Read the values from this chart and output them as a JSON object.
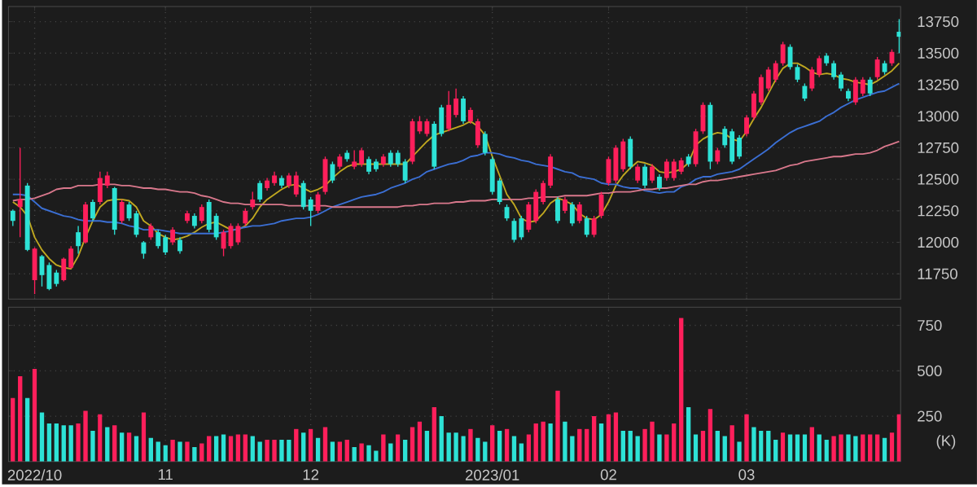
{
  "chart_data": [
    {
      "type": "candlestick",
      "categories": [
        null,
        null,
        null,
        "2022/10",
        null,
        null,
        null,
        null,
        null,
        null,
        null,
        null,
        null,
        null,
        null,
        null,
        null,
        null,
        null,
        null,
        null,
        "11",
        null,
        null,
        null,
        null,
        null,
        null,
        null,
        null,
        null,
        null,
        null,
        null,
        null,
        null,
        null,
        null,
        null,
        null,
        null,
        "12",
        null,
        null,
        null,
        null,
        null,
        null,
        null,
        null,
        null,
        null,
        null,
        null,
        null,
        null,
        null,
        null,
        null,
        null,
        null,
        null,
        null,
        null,
        null,
        null,
        "2023/01",
        null,
        null,
        null,
        null,
        null,
        null,
        null,
        null,
        null,
        null,
        null,
        null,
        null,
        null,
        null,
        "02",
        null,
        null,
        null,
        null,
        null,
        null,
        null,
        null,
        null,
        null,
        null,
        null,
        null,
        null,
        null,
        null,
        null,
        null,
        "03",
        null,
        null,
        null,
        null,
        null,
        null,
        null,
        null,
        null,
        null,
        null,
        null,
        null,
        null,
        null,
        null,
        null,
        null,
        null,
        null,
        null
      ],
      "ohlc": [
        [
          12250,
          12260,
          12130,
          12170
        ],
        [
          12280,
          12750,
          12040,
          12340
        ],
        [
          12450,
          12470,
          11930,
          11940
        ],
        [
          11700,
          11960,
          11590,
          11950
        ],
        [
          11890,
          11900,
          11650,
          11740
        ],
        [
          11820,
          11840,
          11620,
          11630
        ],
        [
          11760,
          11780,
          11650,
          11670
        ],
        [
          11700,
          11880,
          11690,
          11870
        ],
        [
          11800,
          11970,
          11790,
          11950
        ],
        [
          12080,
          12130,
          11910,
          11970
        ],
        [
          12000,
          12320,
          11990,
          12300
        ],
        [
          12320,
          12340,
          12170,
          12190
        ],
        [
          12320,
          12560,
          12300,
          12510
        ],
        [
          12450,
          12560,
          12430,
          12530
        ],
        [
          12430,
          12440,
          12060,
          12100
        ],
        [
          12170,
          12340,
          12150,
          12320
        ],
        [
          12300,
          12320,
          12170,
          12190
        ],
        [
          12230,
          12250,
          12040,
          12060
        ],
        [
          12000,
          12010,
          11870,
          11910
        ],
        [
          12040,
          12150,
          12020,
          12130
        ],
        [
          12080,
          12100,
          11950,
          11970
        ],
        [
          12040,
          12060,
          11900,
          11920
        ],
        [
          12000,
          12120,
          11980,
          12100
        ],
        [
          12020,
          12040,
          11910,
          11930
        ],
        [
          12170,
          12250,
          12150,
          12230
        ],
        [
          12210,
          12230,
          12110,
          12130
        ],
        [
          12170,
          12300,
          12150,
          12280
        ],
        [
          12320,
          12340,
          12080,
          12100
        ],
        [
          12210,
          12230,
          12020,
          12040
        ],
        [
          11950,
          12100,
          11890,
          12080
        ],
        [
          11970,
          12150,
          11950,
          12130
        ],
        [
          12000,
          12150,
          11980,
          12130
        ],
        [
          12150,
          12270,
          12130,
          12250
        ],
        [
          12280,
          12400,
          12260,
          12340
        ],
        [
          12470,
          12490,
          12320,
          12340
        ],
        [
          12430,
          12510,
          12410,
          12490
        ],
        [
          12470,
          12560,
          12450,
          12530
        ],
        [
          12510,
          12530,
          12430,
          12450
        ],
        [
          12450,
          12550,
          12430,
          12530
        ],
        [
          12380,
          12560,
          12360,
          12530
        ],
        [
          12470,
          12490,
          12260,
          12280
        ],
        [
          12340,
          12360,
          12130,
          12250
        ],
        [
          12250,
          12400,
          12230,
          12380
        ],
        [
          12400,
          12680,
          12380,
          12660
        ],
        [
          12620,
          12640,
          12470,
          12490
        ],
        [
          12600,
          12700,
          12580,
          12680
        ],
        [
          12710,
          12730,
          12640,
          12660
        ],
        [
          12600,
          12730,
          12580,
          12640
        ],
        [
          12620,
          12750,
          12600,
          12730
        ],
        [
          12660,
          12680,
          12540,
          12560
        ],
        [
          12640,
          12660,
          12560,
          12580
        ],
        [
          12620,
          12700,
          12600,
          12680
        ],
        [
          12710,
          12730,
          12600,
          12620
        ],
        [
          12710,
          12730,
          12600,
          12620
        ],
        [
          12640,
          12660,
          12470,
          12490
        ],
        [
          12640,
          12980,
          12620,
          12960
        ],
        [
          12880,
          13000,
          12860,
          12960
        ],
        [
          12860,
          12980,
          12840,
          12960
        ],
        [
          12940,
          12960,
          12580,
          12600
        ],
        [
          13070,
          13090,
          12840,
          12860
        ],
        [
          12900,
          13200,
          12880,
          13090
        ],
        [
          13010,
          13220,
          12990,
          13140
        ],
        [
          13140,
          13160,
          12940,
          12960
        ],
        [
          12960,
          13070,
          12940,
          13050
        ],
        [
          12770,
          12980,
          12750,
          12960
        ],
        [
          12860,
          12880,
          12690,
          12710
        ],
        [
          12660,
          12680,
          12380,
          12400
        ],
        [
          12490,
          12510,
          12300,
          12320
        ],
        [
          12280,
          12300,
          12170,
          12190
        ],
        [
          12170,
          12190,
          12000,
          12020
        ],
        [
          12190,
          12210,
          12020,
          12040
        ],
        [
          12100,
          12320,
          12080,
          12300
        ],
        [
          12170,
          12420,
          12150,
          12400
        ],
        [
          12320,
          12490,
          12300,
          12470
        ],
        [
          12450,
          12700,
          12430,
          12680
        ],
        [
          12340,
          12360,
          12150,
          12170
        ],
        [
          12250,
          12360,
          12230,
          12340
        ],
        [
          12300,
          12320,
          12130,
          12150
        ],
        [
          12170,
          12320,
          12150,
          12300
        ],
        [
          12190,
          12210,
          12040,
          12060
        ],
        [
          12060,
          12210,
          12040,
          12190
        ],
        [
          12210,
          12400,
          12190,
          12380
        ],
        [
          12470,
          12680,
          12450,
          12660
        ],
        [
          12490,
          12770,
          12470,
          12750
        ],
        [
          12580,
          12820,
          12560,
          12800
        ],
        [
          12820,
          12840,
          12580,
          12600
        ],
        [
          12490,
          12620,
          12470,
          12600
        ],
        [
          12600,
          12620,
          12430,
          12450
        ],
        [
          12490,
          12620,
          12470,
          12600
        ],
        [
          12520,
          12540,
          12410,
          12430
        ],
        [
          12510,
          12660,
          12490,
          12640
        ],
        [
          12510,
          12660,
          12490,
          12640
        ],
        [
          12560,
          12670,
          12540,
          12650
        ],
        [
          12680,
          12700,
          12600,
          12620
        ],
        [
          12620,
          12900,
          12600,
          12880
        ],
        [
          12880,
          13110,
          12860,
          13090
        ],
        [
          13090,
          13110,
          12580,
          12640
        ],
        [
          12640,
          12750,
          12620,
          12730
        ],
        [
          12900,
          12920,
          12750,
          12770
        ],
        [
          12880,
          12900,
          12620,
          12640
        ],
        [
          12830,
          12850,
          12660,
          12680
        ],
        [
          12860,
          13010,
          12840,
          12990
        ],
        [
          12990,
          13200,
          12970,
          13180
        ],
        [
          13110,
          13330,
          13090,
          13310
        ],
        [
          13220,
          13390,
          13200,
          13370
        ],
        [
          13290,
          13440,
          13270,
          13420
        ],
        [
          13420,
          13590,
          13400,
          13570
        ],
        [
          13550,
          13570,
          13370,
          13390
        ],
        [
          13390,
          13410,
          13270,
          13290
        ],
        [
          13240,
          13260,
          13120,
          13140
        ],
        [
          13220,
          13390,
          13200,
          13370
        ],
        [
          13330,
          13480,
          13310,
          13460
        ],
        [
          13480,
          13500,
          13400,
          13420
        ],
        [
          13420,
          13440,
          13290,
          13310
        ],
        [
          13330,
          13350,
          13200,
          13220
        ],
        [
          13200,
          13220,
          13120,
          13140
        ],
        [
          13110,
          13310,
          13090,
          13290
        ],
        [
          13180,
          13310,
          13160,
          13290
        ],
        [
          13290,
          13310,
          13160,
          13180
        ],
        [
          13310,
          13470,
          13290,
          13450
        ],
        [
          13420,
          13440,
          13330,
          13350
        ],
        [
          13420,
          13530,
          13400,
          13510
        ],
        [
          13670,
          13770,
          13500,
          13630
        ]
      ],
      "colors": [
        "#2de2d6",
        "#ff1f5b",
        "#2de2d6",
        "#ff1f5b",
        "#2de2d6",
        "#2de2d6",
        "#2de2d6",
        "#ff1f5b",
        "#ff1f5b",
        "#2de2d6",
        "#ff1f5b",
        "#2de2d6",
        "#ff1f5b",
        "#ff1f5b",
        "#2de2d6",
        "#ff1f5b",
        "#2de2d6",
        "#2de2d6",
        "#2de2d6",
        "#ff1f5b",
        "#2de2d6",
        "#2de2d6",
        "#ff1f5b",
        "#2de2d6",
        "#ff1f5b",
        "#2de2d6",
        "#ff1f5b",
        "#2de2d6",
        "#2de2d6",
        "#ff1f5b",
        "#ff1f5b",
        "#ff1f5b",
        "#ff1f5b",
        "#ff1f5b",
        "#2de2d6",
        "#ff1f5b",
        "#ff1f5b",
        "#2de2d6",
        "#ff1f5b",
        "#ff1f5b",
        "#2de2d6",
        "#2de2d6",
        "#ff1f5b",
        "#ff1f5b",
        "#2de2d6",
        "#ff1f5b",
        "#2de2d6",
        "#ff1f5b",
        "#ff1f5b",
        "#2de2d6",
        "#2de2d6",
        "#ff1f5b",
        "#2de2d6",
        "#2de2d6",
        "#2de2d6",
        "#ff1f5b",
        "#ff1f5b",
        "#ff1f5b",
        "#2de2d6",
        "#2de2d6",
        "#ff1f5b",
        "#ff1f5b",
        "#2de2d6",
        "#ff1f5b",
        "#ff1f5b",
        "#2de2d6",
        "#2de2d6",
        "#2de2d6",
        "#2de2d6",
        "#2de2d6",
        "#2de2d6",
        "#ff1f5b",
        "#ff1f5b",
        "#ff1f5b",
        "#ff1f5b",
        "#2de2d6",
        "#ff1f5b",
        "#2de2d6",
        "#ff1f5b",
        "#2de2d6",
        "#ff1f5b",
        "#ff1f5b",
        "#ff1f5b",
        "#ff1f5b",
        "#ff1f5b",
        "#2de2d6",
        "#ff1f5b",
        "#2de2d6",
        "#ff1f5b",
        "#2de2d6",
        "#ff1f5b",
        "#ff1f5b",
        "#ff1f5b",
        "#2de2d6",
        "#ff1f5b",
        "#ff1f5b",
        "#2de2d6",
        "#ff1f5b",
        "#2de2d6",
        "#2de2d6",
        "#2de2d6",
        "#ff1f5b",
        "#ff1f5b",
        "#ff1f5b",
        "#ff1f5b",
        "#ff1f5b",
        "#ff1f5b",
        "#2de2d6",
        "#2de2d6",
        "#2de2d6",
        "#ff1f5b",
        "#ff1f5b",
        "#2de2d6",
        "#2de2d6",
        "#2de2d6",
        "#2de2d6",
        "#ff1f5b",
        "#ff1f5b",
        "#2de2d6",
        "#ff1f5b",
        "#2de2d6",
        "#ff1f5b",
        "#2de2d6"
      ],
      "series": [
        {
          "type": "line",
          "color": "#c0a820",
          "values": [
            12320,
            12280,
            12210,
            12040,
            11940,
            11870,
            11820,
            11800,
            11790,
            11890,
            12040,
            12170,
            12280,
            12330,
            12340,
            12340,
            12330,
            12280,
            12170,
            12130,
            12070,
            12040,
            12020,
            12030,
            12050,
            12080,
            12120,
            12150,
            12160,
            12130,
            12100,
            12100,
            12130,
            12190,
            12280,
            12340,
            12380,
            12420,
            12450,
            12460,
            12430,
            12400,
            12420,
            12450,
            12510,
            12560,
            12600,
            12620,
            12620,
            12620,
            12620,
            12620,
            12620,
            12620,
            12620,
            12680,
            12740,
            12800,
            12850,
            12870,
            12890,
            12910,
            12930,
            12960,
            12920,
            12850,
            12680,
            12530,
            12380,
            12300,
            12190,
            12160,
            12170,
            12230,
            12310,
            12350,
            12330,
            12300,
            12230,
            12190,
            12180,
            12220,
            12320,
            12450,
            12530,
            12590,
            12640,
            12630,
            12610,
            12560,
            12550,
            12560,
            12580,
            12630,
            12770,
            12820,
            12850,
            12870,
            12860,
            12820,
            12800,
            12880,
            12980,
            13070,
            13180,
            13290,
            13380,
            13420,
            13420,
            13390,
            13350,
            13330,
            13340,
            13330,
            13300,
            13290,
            13270,
            13260,
            13250,
            13280,
            13320,
            13360,
            13420
          ]
        },
        {
          "type": "line",
          "color": "#3b6fd4",
          "values": [
            12380,
            12380,
            12370,
            12320,
            12270,
            12250,
            12230,
            12210,
            12200,
            12180,
            12170,
            12170,
            12170,
            12160,
            12160,
            12150,
            12130,
            12120,
            12100,
            12100,
            12100,
            12090,
            12080,
            12070,
            12070,
            12070,
            12070,
            12070,
            12070,
            12080,
            12090,
            12110,
            12120,
            12130,
            12130,
            12140,
            12150,
            12170,
            12180,
            12190,
            12190,
            12200,
            12220,
            12250,
            12280,
            12300,
            12320,
            12340,
            12360,
            12370,
            12380,
            12400,
            12430,
            12450,
            12470,
            12500,
            12520,
            12560,
            12580,
            12600,
            12620,
            12630,
            12650,
            12680,
            12690,
            12710,
            12710,
            12700,
            12680,
            12670,
            12650,
            12640,
            12620,
            12610,
            12600,
            12580,
            12560,
            12550,
            12520,
            12510,
            12500,
            12470,
            12460,
            12460,
            12440,
            12430,
            12430,
            12410,
            12400,
            12390,
            12400,
            12400,
            12440,
            12460,
            12500,
            12520,
            12520,
            12540,
            12550,
            12560,
            12580,
            12620,
            12660,
            12700,
            12740,
            12790,
            12830,
            12870,
            12900,
            12920,
            12940,
            12960,
            13000,
            13030,
            13070,
            13100,
            13130,
            13150,
            13170,
            13190,
            13200,
            13230,
            13260
          ]
        },
        {
          "type": "line",
          "color": "#d9788c",
          "values": [
            12330,
            12340,
            12340,
            12350,
            12370,
            12390,
            12420,
            12430,
            12430,
            12450,
            12450,
            12450,
            12460,
            12460,
            12460,
            12450,
            12450,
            12440,
            12430,
            12430,
            12420,
            12420,
            12410,
            12400,
            12400,
            12390,
            12370,
            12360,
            12340,
            12320,
            12310,
            12310,
            12300,
            12300,
            12300,
            12300,
            12300,
            12300,
            12290,
            12290,
            12290,
            12290,
            12290,
            12290,
            12280,
            12280,
            12280,
            12280,
            12280,
            12280,
            12280,
            12280,
            12280,
            12280,
            12290,
            12290,
            12300,
            12300,
            12310,
            12310,
            12310,
            12320,
            12320,
            12330,
            12330,
            12330,
            12340,
            12340,
            12340,
            12340,
            12340,
            12350,
            12350,
            12360,
            12360,
            12360,
            12370,
            12370,
            12370,
            12370,
            12380,
            12390,
            12390,
            12400,
            12400,
            12400,
            12410,
            12420,
            12420,
            12430,
            12430,
            12440,
            12450,
            12460,
            12460,
            12480,
            12490,
            12490,
            12500,
            12510,
            12520,
            12530,
            12540,
            12550,
            12560,
            12570,
            12590,
            12610,
            12620,
            12640,
            12650,
            12660,
            12670,
            12680,
            12680,
            12690,
            12700,
            12700,
            12710,
            12730,
            12760,
            12780,
            12800
          ]
        }
      ],
      "ylim": [
        11550,
        13870
      ],
      "yticks": [
        11750,
        12000,
        12250,
        12500,
        12750,
        13000,
        13250,
        13500,
        13750
      ],
      "grid": true,
      "tick_labels": "y"
    },
    {
      "type": "bar",
      "categories": [
        null,
        null,
        null,
        "2022/10",
        null,
        null,
        null,
        null,
        null,
        null,
        null,
        null,
        null,
        null,
        null,
        null,
        null,
        null,
        null,
        null,
        null,
        "11",
        null,
        null,
        null,
        null,
        null,
        null,
        null,
        null,
        null,
        null,
        null,
        null,
        null,
        null,
        null,
        null,
        null,
        null,
        null,
        "12",
        null,
        null,
        null,
        null,
        null,
        null,
        null,
        null,
        null,
        null,
        null,
        null,
        null,
        null,
        null,
        null,
        null,
        null,
        null,
        null,
        null,
        null,
        null,
        null,
        "2023/01",
        null,
        null,
        null,
        null,
        null,
        null,
        null,
        null,
        null,
        null,
        null,
        null,
        null,
        null,
        null,
        "02",
        null,
        null,
        null,
        null,
        null,
        null,
        null,
        null,
        null,
        null,
        null,
        null,
        null,
        null,
        null,
        null,
        null,
        null,
        "03",
        null,
        null,
        null,
        null,
        null,
        null,
        null,
        null,
        null,
        null,
        null,
        null,
        null,
        null,
        null,
        null,
        null,
        null,
        null,
        null,
        null
      ],
      "values": [
        350,
        470,
        350,
        510,
        270,
        210,
        210,
        200,
        200,
        210,
        280,
        170,
        260,
        190,
        200,
        160,
        160,
        140,
        270,
        130,
        110,
        90,
        120,
        110,
        110,
        80,
        100,
        140,
        140,
        150,
        140,
        150,
        150,
        140,
        110,
        120,
        120,
        120,
        120,
        180,
        160,
        180,
        130,
        190,
        110,
        110,
        120,
        80,
        100,
        90,
        60,
        150,
        100,
        150,
        120,
        190,
        220,
        170,
        300,
        250,
        160,
        160,
        140,
        180,
        130,
        110,
        200,
        170,
        180,
        140,
        100,
        150,
        210,
        220,
        210,
        390,
        220,
        140,
        180,
        180,
        250,
        210,
        260,
        270,
        170,
        170,
        140,
        180,
        220,
        150,
        150,
        210,
        790,
        300,
        150,
        170,
        290,
        170,
        140,
        200,
        110,
        260,
        190,
        170,
        170,
        120,
        160,
        150,
        150,
        150,
        190,
        150,
        120,
        140,
        150,
        150,
        140,
        150,
        150,
        150,
        130,
        160,
        260
      ],
      "colors": [
        "#ff1f5b",
        "#ff1f5b",
        "#2de2d6",
        "#ff1f5b",
        "#2de2d6",
        "#2de2d6",
        "#2de2d6",
        "#2de2d6",
        "#2de2d6",
        "#ff1f5b",
        "#ff1f5b",
        "#2de2d6",
        "#ff1f5b",
        "#2de2d6",
        "#ff1f5b",
        "#2de2d6",
        "#ff1f5b",
        "#2de2d6",
        "#ff1f5b",
        "#2de2d6",
        "#2de2d6",
        "#2de2d6",
        "#ff1f5b",
        "#2de2d6",
        "#ff1f5b",
        "#2de2d6",
        "#ff1f5b",
        "#ff1f5b",
        "#2de2d6",
        "#2de2d6",
        "#ff1f5b",
        "#ff1f5b",
        "#ff1f5b",
        "#2de2d6",
        "#2de2d6",
        "#ff1f5b",
        "#ff1f5b",
        "#2de2d6",
        "#2de2d6",
        "#ff1f5b",
        "#2de2d6",
        "#ff1f5b",
        "#2de2d6",
        "#ff1f5b",
        "#2de2d6",
        "#ff1f5b",
        "#ff1f5b",
        "#2de2d6",
        "#ff1f5b",
        "#2de2d6",
        "#2de2d6",
        "#ff1f5b",
        "#2de2d6",
        "#ff1f5b",
        "#2de2d6",
        "#ff1f5b",
        "#ff1f5b",
        "#2de2d6",
        "#ff1f5b",
        "#2de2d6",
        "#2de2d6",
        "#2de2d6",
        "#2de2d6",
        "#ff1f5b",
        "#2de2d6",
        "#2de2d6",
        "#ff1f5b",
        "#2de2d6",
        "#ff1f5b",
        "#2de2d6",
        "#2de2d6",
        "#ff1f5b",
        "#ff1f5b",
        "#ff1f5b",
        "#2de2d6",
        "#ff1f5b",
        "#2de2d6",
        "#2de2d6",
        "#ff1f5b",
        "#ff1f5b",
        "#ff1f5b",
        "#2de2d6",
        "#ff1f5b",
        "#ff1f5b",
        "#2de2d6",
        "#2de2d6",
        "#2de2d6",
        "#ff1f5b",
        "#ff1f5b",
        "#2de2d6",
        "#ff1f5b",
        "#ff1f5b",
        "#ff1f5b",
        "#2de2d6",
        "#2de2d6",
        "#ff1f5b",
        "#ff1f5b",
        "#2de2d6",
        "#2de2d6",
        "#ff1f5b",
        "#2de2d6",
        "#ff1f5b",
        "#2de2d6",
        "#2de2d6",
        "#2de2d6",
        "#2de2d6",
        "#ff1f5b",
        "#2de2d6",
        "#2de2d6",
        "#2de2d6",
        "#ff1f5b",
        "#2de2d6",
        "#2de2d6",
        "#ff1f5b",
        "#ff1f5b",
        "#2de2d6",
        "#2de2d6",
        "#ff1f5b",
        "#ff1f5b",
        "#ff1f5b",
        "#2de2d6",
        "#ff1f5b",
        "#ff1f5b"
      ],
      "ylim": [
        0,
        850
      ],
      "yticks": [
        250,
        500,
        750
      ],
      "ylabel": "(K)",
      "grid": true
    }
  ]
}
